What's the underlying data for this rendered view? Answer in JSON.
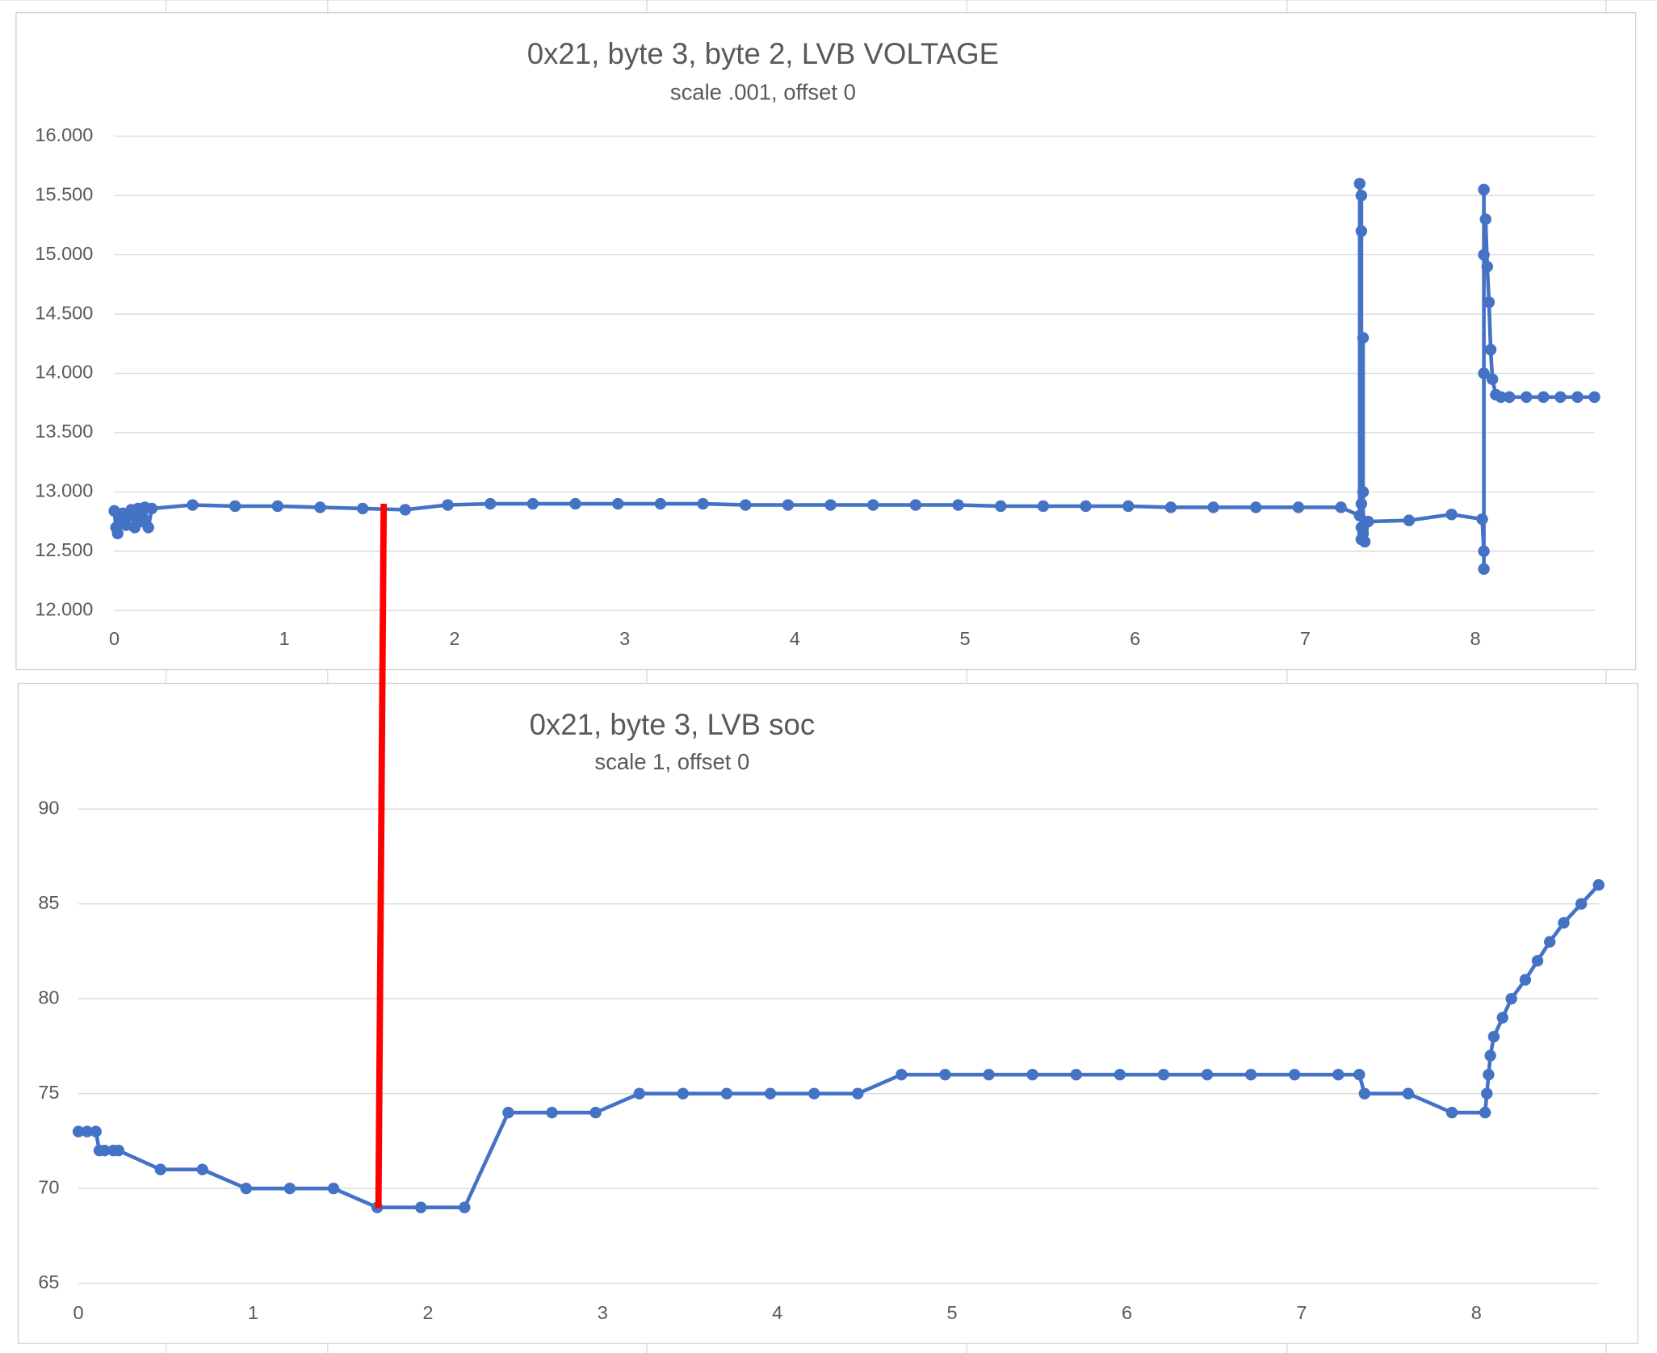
{
  "chart_data": [
    {
      "type": "line",
      "title": "0x21, byte 3, byte 2, LVB VOLTAGE",
      "subtitle": "scale .001, offset 0",
      "color": "#4472c4",
      "grid": true,
      "xlim": [
        0,
        8.7
      ],
      "xticks": [
        0,
        1,
        2,
        3,
        4,
        5,
        6,
        7,
        8
      ],
      "ylim": [
        12,
        16
      ],
      "yticks": [
        {
          "value": 12,
          "label": "12.000"
        },
        {
          "value": 12.5,
          "label": "12.500"
        },
        {
          "value": 13,
          "label": "13.000"
        },
        {
          "value": 13.5,
          "label": "13.500"
        },
        {
          "value": 14,
          "label": "14.000"
        },
        {
          "value": 14.5,
          "label": "14.500"
        },
        {
          "value": 15,
          "label": "15.000"
        },
        {
          "value": 15.5,
          "label": "15.500"
        },
        {
          "value": 16,
          "label": "16.000"
        }
      ],
      "x": [
        0,
        0.01,
        0.02,
        0.03,
        0.05,
        0.07,
        0.09,
        0.1,
        0.12,
        0.14,
        0.16,
        0.18,
        0.2,
        0.22,
        0.46,
        0.71,
        0.96,
        1.21,
        1.46,
        1.71,
        1.96,
        2.21,
        2.46,
        2.71,
        2.96,
        3.21,
        3.46,
        3.71,
        3.96,
        4.21,
        4.46,
        4.71,
        4.96,
        5.21,
        5.46,
        5.71,
        5.96,
        6.21,
        6.46,
        6.71,
        6.96,
        7.21,
        7.32,
        7.32,
        7.33,
        7.33,
        7.33,
        7.33,
        7.33,
        7.34,
        7.34,
        7.34,
        7.35,
        7.37,
        7.61,
        7.86,
        8.04,
        8.05,
        8.05,
        8.05,
        8.05,
        8.05,
        8.06,
        8.07,
        8.08,
        8.09,
        8.1,
        8.12,
        8.15,
        8.2,
        8.3,
        8.4,
        8.5,
        8.6,
        8.7
      ],
      "values": [
        12.84,
        12.7,
        12.65,
        12.78,
        12.82,
        12.72,
        12.8,
        12.85,
        12.7,
        12.86,
        12.75,
        12.87,
        12.7,
        12.86,
        12.89,
        12.88,
        12.88,
        12.87,
        12.86,
        12.85,
        12.89,
        12.9,
        12.9,
        12.9,
        12.9,
        12.9,
        12.9,
        12.89,
        12.89,
        12.89,
        12.89,
        12.89,
        12.89,
        12.88,
        12.88,
        12.88,
        12.88,
        12.87,
        12.87,
        12.87,
        12.87,
        12.87,
        12.8,
        15.6,
        12.6,
        15.5,
        12.7,
        15.2,
        12.9,
        14.3,
        13.0,
        12.65,
        12.58,
        12.75,
        12.76,
        12.81,
        12.77,
        12.5,
        12.35,
        14.0,
        15.55,
        15.0,
        15.3,
        14.9,
        14.6,
        14.2,
        13.95,
        13.82,
        13.8,
        13.8,
        13.8,
        13.8,
        13.8,
        13.8,
        13.8
      ]
    },
    {
      "type": "line",
      "title": "0x21, byte 3, LVB soc",
      "subtitle": "scale 1, offset 0",
      "color": "#4472c4",
      "grid": true,
      "xlim": [
        0,
        8.7
      ],
      "xticks": [
        0,
        1,
        2,
        3,
        4,
        5,
        6,
        7,
        8
      ],
      "ylim": [
        65,
        90
      ],
      "yticks": [
        65,
        70,
        75,
        80,
        85,
        90
      ],
      "x": [
        0,
        0.05,
        0.1,
        0.12,
        0.15,
        0.2,
        0.23,
        0.47,
        0.71,
        0.96,
        1.21,
        1.46,
        1.71,
        1.96,
        2.21,
        2.46,
        2.71,
        2.96,
        3.21,
        3.46,
        3.71,
        3.96,
        4.21,
        4.46,
        4.71,
        4.96,
        5.21,
        5.46,
        5.71,
        5.96,
        6.21,
        6.46,
        6.71,
        6.96,
        7.21,
        7.33,
        7.36,
        7.61,
        7.86,
        8.05,
        8.06,
        8.07,
        8.08,
        8.1,
        8.15,
        8.2,
        8.28,
        8.35,
        8.42,
        8.5,
        8.6,
        8.7
      ],
      "values": [
        73,
        73,
        73,
        72,
        72,
        72,
        72,
        71,
        71,
        70,
        70,
        70,
        69,
        69,
        69,
        74,
        74,
        74,
        75,
        75,
        75,
        75,
        75,
        75,
        76,
        76,
        76,
        76,
        76,
        76,
        76,
        76,
        76,
        76,
        76,
        76,
        75,
        75,
        74,
        74,
        75,
        76,
        77,
        78,
        79,
        80,
        81,
        82,
        83,
        84,
        85,
        86
      ]
    }
  ]
}
